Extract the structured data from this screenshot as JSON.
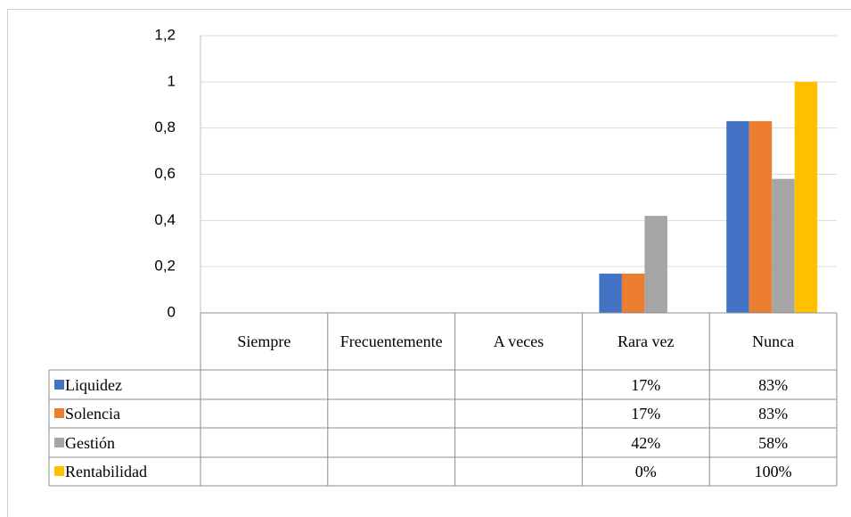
{
  "chart_data": {
    "type": "bar",
    "categories": [
      "Siempre",
      "Frecuentemente",
      "A veces",
      "Rara vez",
      "Nunca"
    ],
    "series": [
      {
        "name": "Liquidez",
        "color": "#4472c4",
        "values": [
          null,
          null,
          null,
          0.17,
          0.83
        ],
        "value_labels": [
          null,
          null,
          null,
          "17%",
          "83%"
        ]
      },
      {
        "name": "Solencia",
        "color": "#ed7d31",
        "values": [
          null,
          null,
          null,
          0.17,
          0.83
        ],
        "value_labels": [
          null,
          null,
          null,
          "17%",
          "83%"
        ]
      },
      {
        "name": "Gestión",
        "color": "#a5a5a5",
        "values": [
          null,
          null,
          null,
          0.42,
          0.58
        ],
        "value_labels": [
          null,
          null,
          null,
          "42%",
          "58%"
        ]
      },
      {
        "name": "Rentabilidad",
        "color": "#ffc000",
        "values": [
          null,
          null,
          null,
          0,
          1
        ],
        "value_labels": [
          null,
          null,
          null,
          "0%",
          "100%"
        ]
      }
    ],
    "ylim": [
      0,
      1.2
    ],
    "yticks": [
      0,
      {
        "value": 0.2,
        "label": "0,2"
      },
      {
        "value": 0.4,
        "label": "0,4"
      },
      {
        "value": 0.6,
        "label": "0,6"
      },
      {
        "value": 0.8,
        "label": "0,8"
      },
      1,
      {
        "value": 1.2,
        "label": "1,2"
      }
    ],
    "grid": true
  }
}
